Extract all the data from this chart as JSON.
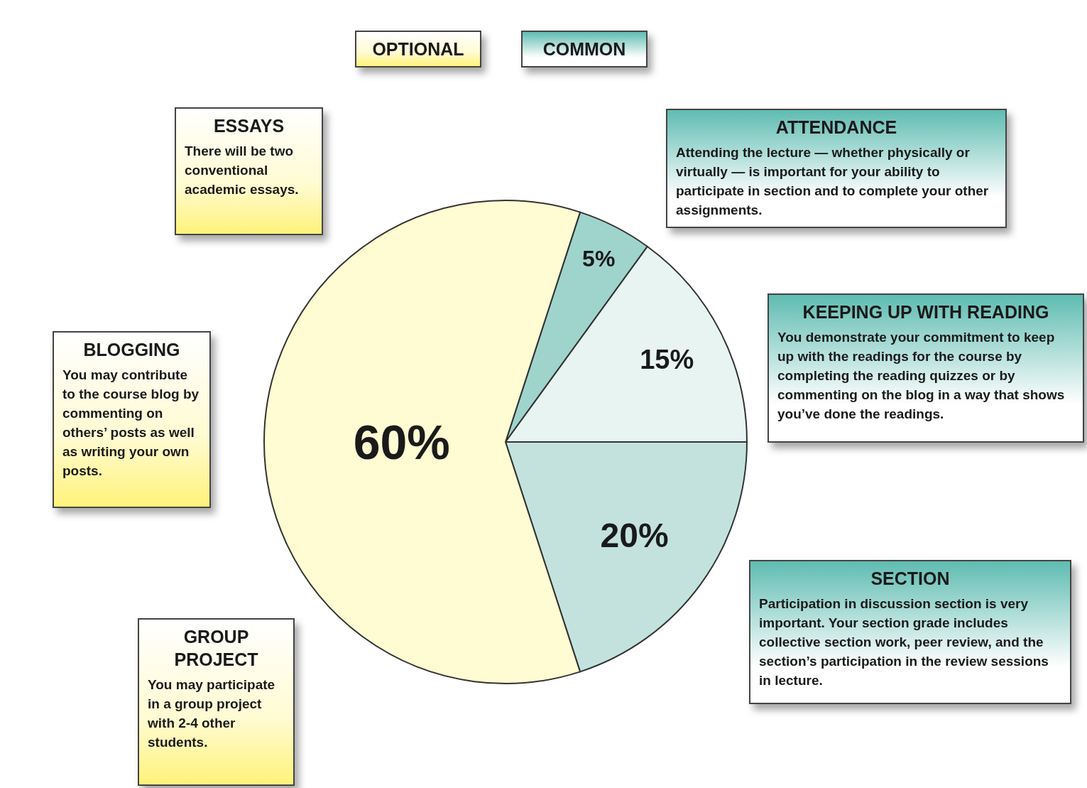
{
  "chart_data": {
    "type": "pie",
    "categories": [
      null,
      null,
      null,
      null
    ],
    "values": [
      5,
      15,
      20,
      60
    ],
    "colors": [
      "#9fd4cd",
      "#e8f4f2",
      "#c3e2de",
      "#fffbd2"
    ],
    "value_labels": [
      "5%",
      "15%",
      "20%",
      "60%"
    ],
    "annotations": [
      "OPTIONAL",
      "COMMON",
      "ESSAYS",
      "There will be two conventional academic essays.",
      "BLOGGING",
      "You may contribute to the course blog by commenting on others’ posts as well as writing your own posts.",
      "GROUP PROJECT",
      "You may participate in a group project with 2-4 other students.",
      "ATTENDANCE",
      "Attending the lecture — whether physically or virtually — is important for your ability to participate in section and to complete your other assignments.",
      "KEEPING UP WITH READING",
      "You demonstrate your commitment to keep up with the readings for the course by completing the reading quizzes or by commenting on the blog in a way that shows you’ve done the readings.",
      "SECTION",
      "Participation in discussion section is very important. Your section grade includes collective section work, peer review, and the section’s participation in the review sessions in lecture."
    ]
  }
}
